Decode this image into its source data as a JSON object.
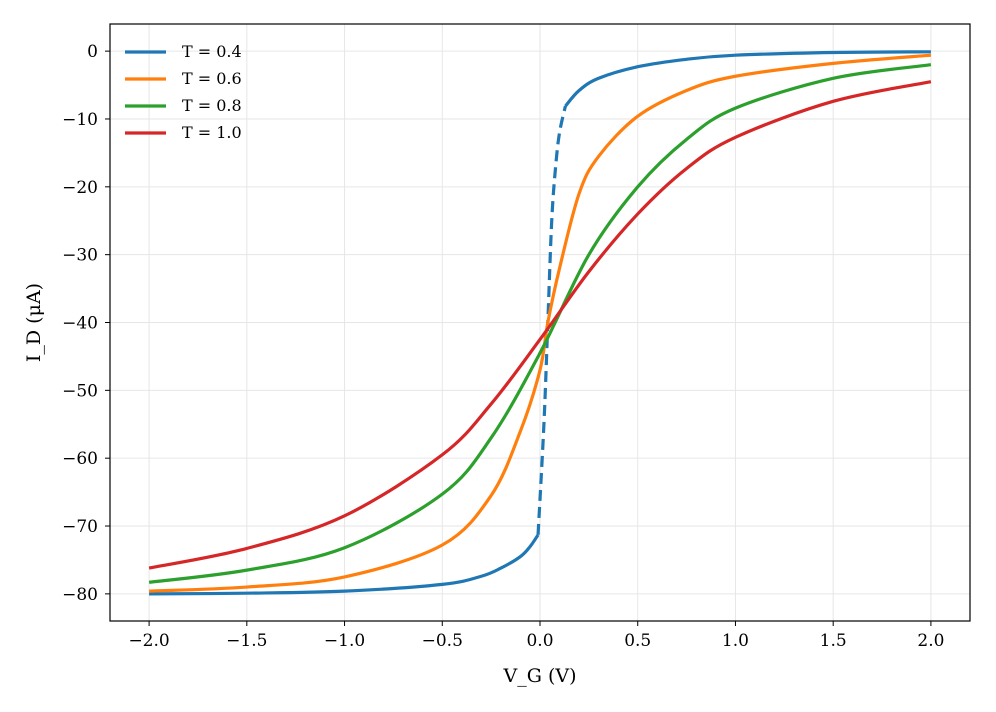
{
  "chart_data": {
    "type": "line",
    "xlabel": "V_G (V)",
    "ylabel": "I_D (μA)",
    "xlim": [
      -2.2,
      2.2
    ],
    "ylim": [
      -84,
      4
    ],
    "xticks": [
      -2.0,
      -1.5,
      -1.0,
      -0.5,
      0.0,
      0.5,
      1.0,
      1.5,
      2.0
    ],
    "xtick_labels": [
      "−2.0",
      "−1.5",
      "−1.0",
      "−0.5",
      "0.0",
      "0.5",
      "1.0",
      "1.5",
      "2.0"
    ],
    "yticks": [
      0,
      -10,
      -20,
      -30,
      -40,
      -50,
      -60,
      -70,
      -80
    ],
    "ytick_labels": [
      "0",
      "−10",
      "−20",
      "−30",
      "−40",
      "−50",
      "−60",
      "−70",
      "−80"
    ],
    "grid": true,
    "legend_position": "top-left",
    "series": [
      {
        "name": "T = 0.4",
        "color": "#1f77b4",
        "segments": [
          {
            "style": "solid",
            "points": [
              [
                -2.0,
                -80.0
              ],
              [
                -1.5,
                -79.9
              ],
              [
                -1.0,
                -79.6
              ],
              [
                -0.5,
                -78.6
              ],
              [
                -0.3,
                -77.4
              ],
              [
                -0.2,
                -76.2
              ],
              [
                -0.1,
                -74.5
              ],
              [
                -0.05,
                -73.0
              ],
              [
                -0.01,
                -71.3
              ]
            ]
          },
          {
            "style": "dashed",
            "points": [
              [
                -0.01,
                -71.3
              ],
              [
                0.02,
                -55.0
              ],
              [
                0.04,
                -40.0
              ],
              [
                0.06,
                -25.0
              ],
              [
                0.08,
                -17.0
              ],
              [
                0.1,
                -12.0
              ],
              [
                0.13,
                -8.1
              ]
            ]
          },
          {
            "style": "solid",
            "points": [
              [
                0.13,
                -8.1
              ],
              [
                0.2,
                -5.8
              ],
              [
                0.3,
                -4.0
              ],
              [
                0.5,
                -2.3
              ],
              [
                0.75,
                -1.2
              ],
              [
                1.0,
                -0.6
              ],
              [
                1.5,
                -0.2
              ],
              [
                2.0,
                -0.1
              ]
            ]
          }
        ]
      },
      {
        "name": "T = 0.6",
        "color": "#ff7f0e",
        "segments": [
          {
            "style": "solid",
            "points": [
              [
                -2.0,
                -79.6
              ],
              [
                -1.5,
                -79.0
              ],
              [
                -1.0,
                -77.5
              ],
              [
                -0.5,
                -72.8
              ],
              [
                -0.25,
                -65.5
              ],
              [
                -0.1,
                -56.0
              ],
              [
                0.0,
                -47.0
              ],
              [
                0.04,
                -40.0
              ],
              [
                0.1,
                -32.0
              ],
              [
                0.2,
                -21.0
              ],
              [
                0.3,
                -15.5
              ],
              [
                0.5,
                -9.6
              ],
              [
                0.75,
                -5.8
              ],
              [
                1.0,
                -3.7
              ],
              [
                1.5,
                -1.8
              ],
              [
                2.0,
                -0.6
              ]
            ]
          }
        ]
      },
      {
        "name": "T = 0.8",
        "color": "#2ca02c",
        "segments": [
          {
            "style": "solid",
            "points": [
              [
                -2.0,
                -78.3
              ],
              [
                -1.5,
                -76.5
              ],
              [
                -1.0,
                -73.2
              ],
              [
                -0.5,
                -65.3
              ],
              [
                -0.25,
                -57.0
              ],
              [
                0.0,
                -44.5
              ],
              [
                0.25,
                -30.0
              ],
              [
                0.5,
                -20.0
              ],
              [
                0.75,
                -13.0
              ],
              [
                1.0,
                -8.4
              ],
              [
                1.5,
                -4.0
              ],
              [
                2.0,
                -2.0
              ]
            ]
          }
        ]
      },
      {
        "name": "T = 1.0",
        "color": "#d62728",
        "segments": [
          {
            "style": "solid",
            "points": [
              [
                -2.0,
                -76.2
              ],
              [
                -1.5,
                -73.3
              ],
              [
                -1.0,
                -68.5
              ],
              [
                -0.5,
                -59.5
              ],
              [
                -0.25,
                -52.0
              ],
              [
                0.0,
                -42.5
              ],
              [
                0.25,
                -32.5
              ],
              [
                0.5,
                -24.0
              ],
              [
                0.75,
                -17.3
              ],
              [
                1.0,
                -12.7
              ],
              [
                1.5,
                -7.4
              ],
              [
                2.0,
                -4.5
              ]
            ]
          }
        ]
      }
    ]
  }
}
